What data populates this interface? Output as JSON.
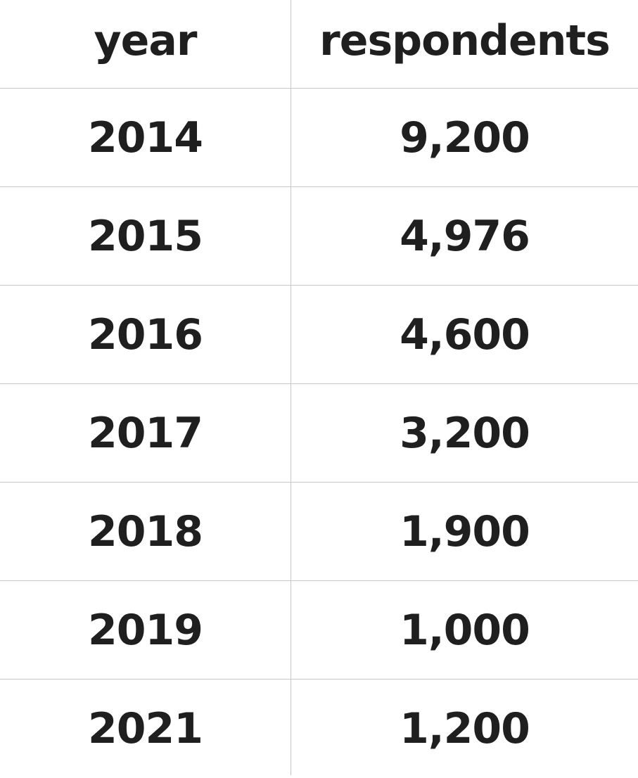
{
  "chart_data": {
    "type": "table",
    "columns": [
      "year",
      "respondents"
    ],
    "rows": [
      {
        "year": "2014",
        "respondents": "9,200"
      },
      {
        "year": "2015",
        "respondents": "4,976"
      },
      {
        "year": "2016",
        "respondents": "4,600"
      },
      {
        "year": "2017",
        "respondents": "3,200"
      },
      {
        "year": "2018",
        "respondents": "1,900"
      },
      {
        "year": "2019",
        "respondents": "1,000"
      },
      {
        "year": "2021",
        "respondents": "1,200"
      }
    ],
    "values": [
      9200,
      4976,
      4600,
      3200,
      1900,
      1000,
      1200
    ]
  }
}
